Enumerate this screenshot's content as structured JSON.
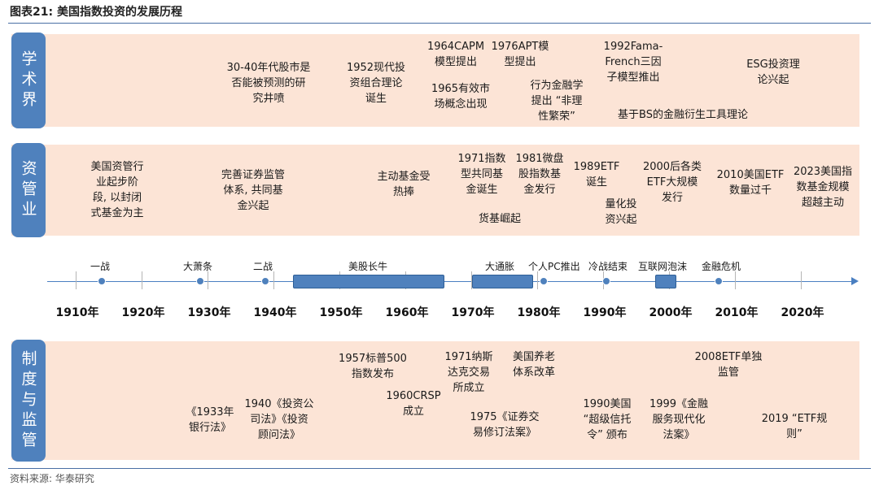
{
  "title": "图表21:  美国指数投资的发展历程",
  "source": "资料来源: 华泰研究",
  "sections": {
    "academia": {
      "label": "学术界",
      "notes": [
        "30-40年代股市是\n否能被预测的研\n究井喷",
        "1952现代投\n资组合理论\n诞生",
        "1964CAPM\n模型提出",
        "1965有效市\n场概念出现",
        "1976APT模\n型提出",
        "行为金融学\n提出 “非理\n性繁荣”",
        "1992Fama-\nFrench三因\n子模型推出",
        "基于BS的金融衍生工具理论",
        "ESG投资理\n论兴起"
      ]
    },
    "asset_mgmt": {
      "label": "资管业",
      "notes": [
        "美国资管行\n业起步阶\n段, 以封闭\n式基金为主",
        "完善证券监管\n体系, 共同基\n金兴起",
        "主动基金受\n热捧",
        "1971指数\n型共同基\n金诞生",
        "1981微盘\n股指数基\n金发行",
        "货基崛起",
        "1989ETF\n诞生",
        "量化投\n资兴起",
        "2000后各类\nETF大规模\n发行",
        "2010美国ETF\n数量过千",
        "2023美国指\n数基金规模\n超越主动"
      ]
    },
    "regulation": {
      "label": "制度与监管",
      "notes": [
        "《1933年\n银行法》",
        "1940《投资公\n司法》《投资\n顾问法》",
        "1957标普500\n指数发布",
        "1960CRSP\n成立",
        "1971纳斯\n达克交易\n所成立",
        "1975《证券交\n易修订法案》",
        "美国养老\n体系改革",
        "1990美国\n“超级信托\n令” 颁布",
        "1999《金融\n服务现代化\n法案》",
        "2008ETF单独\n监管",
        "2019 “ETF规\n则”"
      ]
    }
  },
  "timeline": {
    "years": [
      "1910年",
      "1920年",
      "1930年",
      "1940年",
      "1950年",
      "1960年",
      "1970年",
      "1980年",
      "1990年",
      "2000年",
      "2010年",
      "2020年"
    ],
    "periods": [
      "美股长牛",
      "大通胀",
      "互联网泡沫"
    ],
    "events": [
      "一战",
      "大萧条",
      "二战",
      "个人PC推出",
      "冷战结束",
      "金融危机"
    ]
  },
  "colors": {
    "band": "#fce4d6",
    "label_bg": "#4f81bd",
    "axis": "#4a7fc1"
  }
}
